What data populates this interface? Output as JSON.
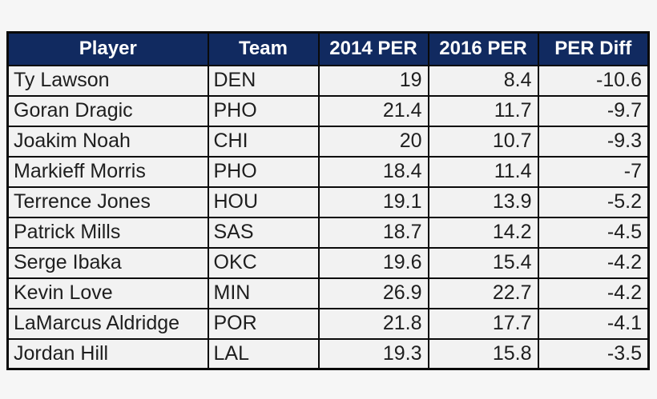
{
  "style": {
    "page_bg": "#f6f6f6",
    "header_bg": "#112a60",
    "header_text": "#ffffff",
    "row_bg": "#f2f2f2",
    "border_color": "#0a0a0a",
    "text_color": "#1e1e1e"
  },
  "chart_data": {
    "type": "table",
    "title": "",
    "columns": [
      "Player",
      "Team",
      "2014 PER",
      "2016 PER",
      "PER Diff"
    ],
    "rows": [
      [
        "Ty Lawson",
        "DEN",
        "19",
        "8.4",
        "-10.6"
      ],
      [
        "Goran Dragic",
        "PHO",
        "21.4",
        "11.7",
        "-9.7"
      ],
      [
        "Joakim Noah",
        "CHI",
        "20",
        "10.7",
        "-9.3"
      ],
      [
        "Markieff Morris",
        "PHO",
        "18.4",
        "11.4",
        "-7"
      ],
      [
        "Terrence Jones",
        "HOU",
        "19.1",
        "13.9",
        "-5.2"
      ],
      [
        "Patrick Mills",
        "SAS",
        "18.7",
        "14.2",
        "-4.5"
      ],
      [
        "Serge Ibaka",
        "OKC",
        "19.6",
        "15.4",
        "-4.2"
      ],
      [
        "Kevin Love",
        "MIN",
        "26.9",
        "22.7",
        "-4.2"
      ],
      [
        "LaMarcus Aldridge",
        "POR",
        "21.8",
        "17.7",
        "-4.1"
      ],
      [
        "Jordan Hill",
        "LAL",
        "19.3",
        "15.8",
        "-3.5"
      ]
    ]
  }
}
